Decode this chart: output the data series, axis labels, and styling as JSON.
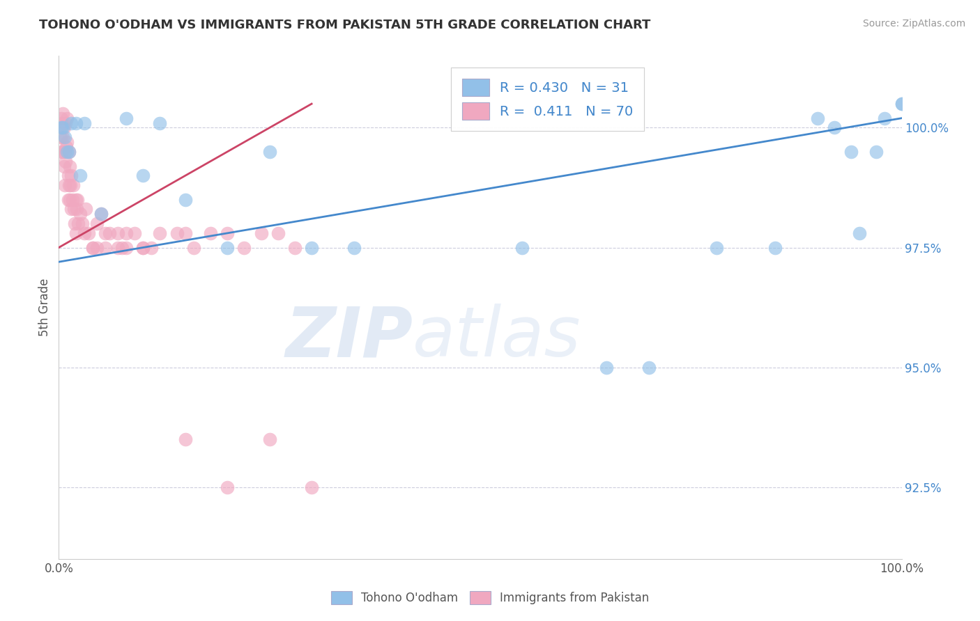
{
  "title": "TOHONO O'ODHAM VS IMMIGRANTS FROM PAKISTAN 5TH GRADE CORRELATION CHART",
  "source": "Source: ZipAtlas.com",
  "ylabel": "5th Grade",
  "xlim": [
    0.0,
    100.0
  ],
  "ylim": [
    91.0,
    101.5
  ],
  "yticks": [
    92.5,
    95.0,
    97.5,
    100.0
  ],
  "ytick_labels": [
    "92.5%",
    "95.0%",
    "97.5%",
    "100.0%"
  ],
  "blue_R": 0.43,
  "blue_N": 31,
  "pink_R": 0.411,
  "pink_N": 70,
  "blue_color": "#92C0E8",
  "pink_color": "#F0A8C0",
  "blue_line_color": "#4488CC",
  "pink_line_color": "#CC4466",
  "background_color": "#FFFFFF",
  "grid_color": "#CCCCDD",
  "legend_label_blue": "Tohono O'odham",
  "legend_label_pink": "Immigrants from Pakistan",
  "blue_line_x0": 0.0,
  "blue_line_y0": 97.2,
  "blue_line_x1": 100.0,
  "blue_line_y1": 100.2,
  "pink_line_x0": 0.0,
  "pink_line_y0": 97.5,
  "pink_line_x1": 30.0,
  "pink_line_y1": 100.5,
  "blue_scatter_x": [
    0.3,
    0.5,
    0.7,
    1.0,
    1.2,
    1.5,
    2.0,
    2.5,
    3.0,
    5.0,
    8.0,
    10.0,
    12.0,
    15.0,
    20.0,
    25.0,
    30.0,
    35.0,
    55.0,
    65.0,
    70.0,
    78.0,
    85.0,
    90.0,
    92.0,
    94.0,
    95.0,
    97.0,
    98.0,
    100.0,
    100.0
  ],
  "blue_scatter_y": [
    100.0,
    100.0,
    99.8,
    99.5,
    99.5,
    100.1,
    100.1,
    99.0,
    100.1,
    98.2,
    100.2,
    99.0,
    100.1,
    98.5,
    97.5,
    99.5,
    97.5,
    97.5,
    97.5,
    95.0,
    95.0,
    97.5,
    97.5,
    100.2,
    100.0,
    99.5,
    97.8,
    99.5,
    100.2,
    100.5,
    100.5
  ],
  "pink_scatter_x": [
    0.2,
    0.3,
    0.3,
    0.4,
    0.5,
    0.5,
    0.5,
    0.6,
    0.6,
    0.7,
    0.7,
    0.8,
    0.8,
    0.9,
    1.0,
    1.0,
    1.1,
    1.1,
    1.2,
    1.2,
    1.3,
    1.3,
    1.4,
    1.5,
    1.5,
    1.6,
    1.7,
    1.8,
    1.9,
    2.0,
    2.0,
    2.1,
    2.2,
    2.3,
    2.5,
    2.8,
    3.0,
    3.2,
    3.5,
    4.0,
    4.5,
    5.0,
    5.5,
    6.0,
    7.0,
    7.5,
    8.0,
    9.0,
    10.0,
    11.0,
    12.0,
    14.0,
    15.0,
    16.0,
    18.0,
    20.0,
    22.0,
    24.0,
    26.0,
    28.0,
    4.0,
    4.5,
    5.5,
    7.0,
    8.0,
    10.0,
    15.0,
    20.0,
    25.0,
    30.0
  ],
  "pink_scatter_y": [
    99.8,
    100.2,
    99.5,
    100.1,
    100.3,
    99.8,
    99.5,
    100.0,
    99.2,
    99.5,
    98.8,
    100.1,
    99.3,
    99.6,
    100.2,
    99.7,
    99.0,
    98.5,
    99.5,
    98.8,
    99.2,
    98.5,
    98.8,
    99.0,
    98.3,
    98.5,
    98.8,
    98.3,
    98.0,
    98.5,
    97.8,
    98.3,
    98.5,
    98.0,
    98.2,
    98.0,
    97.8,
    98.3,
    97.8,
    97.5,
    98.0,
    98.2,
    97.8,
    97.8,
    97.8,
    97.5,
    97.8,
    97.8,
    97.5,
    97.5,
    97.8,
    97.8,
    97.8,
    97.5,
    97.8,
    97.8,
    97.5,
    97.8,
    97.8,
    97.5,
    97.5,
    97.5,
    97.5,
    97.5,
    97.5,
    97.5,
    93.5,
    92.5,
    93.5,
    92.5
  ]
}
